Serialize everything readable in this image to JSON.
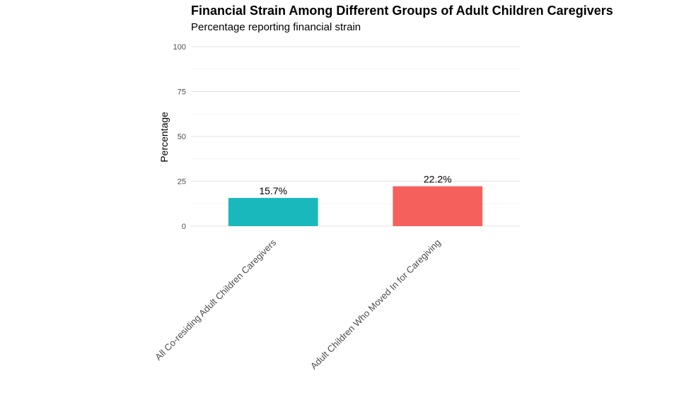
{
  "chart_data": {
    "type": "bar",
    "title": "Financial Strain Among Different Groups of Adult Children Caregivers",
    "subtitle": "Percentage reporting financial strain",
    "xlabel": "",
    "ylabel": "Percentage",
    "ylim": [
      0,
      100
    ],
    "yticks": [
      0,
      25,
      50,
      75,
      100
    ],
    "grid": true,
    "legend": "none",
    "categories": [
      "All Co-residing Adult Children Caregivers",
      "Adult Children Who Moved In for Caregiving"
    ],
    "values": [
      15.7,
      22.2
    ],
    "data_labels": [
      "15.7%",
      "22.2%"
    ],
    "colors": [
      "#19B8BC",
      "#F5605D"
    ]
  }
}
